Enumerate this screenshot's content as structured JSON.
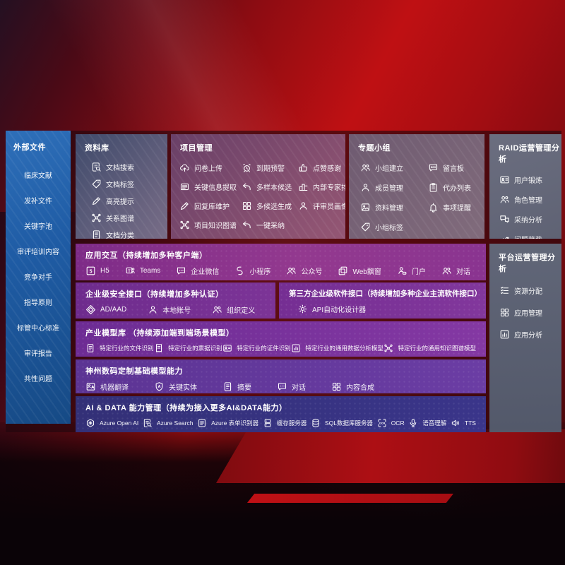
{
  "palette": {
    "bg_red": "#bf1013",
    "bg_dark": "#0a0307",
    "sidebar_blue": "#1f5ca5",
    "slate_panel": "#606678",
    "mauve_panel": "#8a5f84",
    "purple_row": "#7e2b88",
    "violet_row": "#6d2c94",
    "indigo_row": "#333077"
  },
  "sidebar": {
    "title": "外部文件",
    "items": [
      {
        "label": "临床文献"
      },
      {
        "label": "发补文件"
      },
      {
        "label": "关键字池"
      },
      {
        "label": "审评培训内容"
      },
      {
        "label": "竞争对手"
      },
      {
        "label": "指导原则"
      },
      {
        "label": "标管中心标准"
      },
      {
        "label": "审评报告"
      },
      {
        "label": "共性问题"
      }
    ]
  },
  "panels": {
    "library": {
      "title": "资料库",
      "items": [
        {
          "label": "文档搜索",
          "icon": "doc-search"
        },
        {
          "label": "文档标签",
          "icon": "tag"
        },
        {
          "label": "高亮提示",
          "icon": "pen"
        },
        {
          "label": "关系图谱",
          "icon": "graph"
        },
        {
          "label": "文档分类",
          "icon": "doc"
        }
      ]
    },
    "project": {
      "title": "项目管理",
      "items": [
        {
          "label": "问卷上传",
          "icon": "cloud-up"
        },
        {
          "label": "到期预警",
          "icon": "alarm"
        },
        {
          "label": "点赞感谢",
          "icon": "thumb"
        },
        {
          "label": "关键信息提取",
          "icon": "extract"
        },
        {
          "label": "多样本候选",
          "icon": "reply"
        },
        {
          "label": "内部专家排名",
          "icon": "rank"
        },
        {
          "label": "回复库维护",
          "icon": "pen"
        },
        {
          "label": "多候选生成",
          "icon": "grid"
        },
        {
          "label": "评审员画像",
          "icon": "person"
        },
        {
          "label": "项目知识图谱",
          "icon": "graph"
        },
        {
          "label": "一键采纳",
          "icon": "reply"
        }
      ]
    },
    "groups": {
      "title": "专题小组",
      "items": [
        {
          "label": "小组建立",
          "icon": "people"
        },
        {
          "label": "留言板",
          "icon": "bbs"
        },
        {
          "label": "成员管理",
          "icon": "person"
        },
        {
          "label": "代办列表",
          "icon": "clipboard"
        },
        {
          "label": "资料管理",
          "icon": "image"
        },
        {
          "label": "事项提醒",
          "icon": "bell"
        },
        {
          "label": "小组标签",
          "icon": "tag"
        }
      ]
    },
    "raid": {
      "title": "RAID运营管理分析",
      "items": [
        {
          "label": "用户锻炼",
          "icon": "card"
        },
        {
          "label": "角色管理",
          "icon": "people"
        },
        {
          "label": "采纳分析",
          "icon": "chat-qa"
        },
        {
          "label": "问题趋势",
          "icon": "trend"
        }
      ]
    },
    "platform": {
      "title": "平台运营管理分析",
      "items": [
        {
          "label": "资源分配",
          "icon": "list"
        },
        {
          "label": "应用管理",
          "icon": "grid"
        },
        {
          "label": "应用分析",
          "icon": "chart"
        }
      ]
    }
  },
  "rows": {
    "interact": {
      "title": "应用交互（持续增加多种客户端）",
      "items": [
        {
          "label": "H5",
          "icon": "h5"
        },
        {
          "label": "Teams",
          "icon": "teams"
        },
        {
          "label": "企业微信",
          "icon": "chat-dots"
        },
        {
          "label": "小程序",
          "icon": "s-curve"
        },
        {
          "label": "公众号",
          "icon": "people"
        },
        {
          "label": "Web飘窗",
          "icon": "window"
        },
        {
          "label": "门户",
          "icon": "portal"
        },
        {
          "label": "对话",
          "icon": "people"
        }
      ]
    },
    "security": {
      "title": "企业级安全接口（持续增加多种认证）",
      "items": [
        {
          "label": "AD/AAD",
          "icon": "diamond"
        },
        {
          "label": "本地账号",
          "icon": "person"
        },
        {
          "label": "组织定义",
          "icon": "people"
        }
      ]
    },
    "thirdparty": {
      "title": "第三方企业级软件接口（持续增加多种企业主流软件接口）",
      "items": [
        {
          "label": "API自动化设计器",
          "icon": "gear"
        }
      ]
    },
    "industry": {
      "title": "产业模型库 （持续添加端到端场景模型）",
      "items": [
        {
          "label": "特定行业的文件识别",
          "icon": "doc"
        },
        {
          "label": "特定行业的票据识别",
          "icon": "receipt"
        },
        {
          "label": "特定行业的证件识别",
          "icon": "card"
        },
        {
          "label": "特定行业的通用数据分析模型",
          "icon": "chart"
        },
        {
          "label": "特定行业的通用知识图谱模型",
          "icon": "graph"
        }
      ]
    },
    "digital": {
      "title": "神州数码定制基础模型能力",
      "items": [
        {
          "label": "机器翻译",
          "icon": "translate"
        },
        {
          "label": "关键实体",
          "icon": "shield-a"
        },
        {
          "label": "摘要",
          "icon": "doc"
        },
        {
          "label": "对话",
          "icon": "chat-dots"
        },
        {
          "label": "内容合成",
          "icon": "grid"
        }
      ]
    },
    "aidata": {
      "title": "AI & DATA 能力管理（持续为接入更多AI&DATA能力）",
      "items": [
        {
          "label": "Azure Open AI",
          "icon": "openai"
        },
        {
          "label": "Azure Search",
          "icon": "doc-search"
        },
        {
          "label": "Azure 表单识别器",
          "icon": "form"
        },
        {
          "label": "缓存服务器",
          "icon": "server"
        },
        {
          "label": "SQL数据库服务器",
          "icon": "db"
        },
        {
          "label": "OCR",
          "icon": "ocr"
        },
        {
          "label": "语音理解",
          "icon": "mic"
        },
        {
          "label": "TTS",
          "icon": "speaker"
        }
      ]
    }
  }
}
